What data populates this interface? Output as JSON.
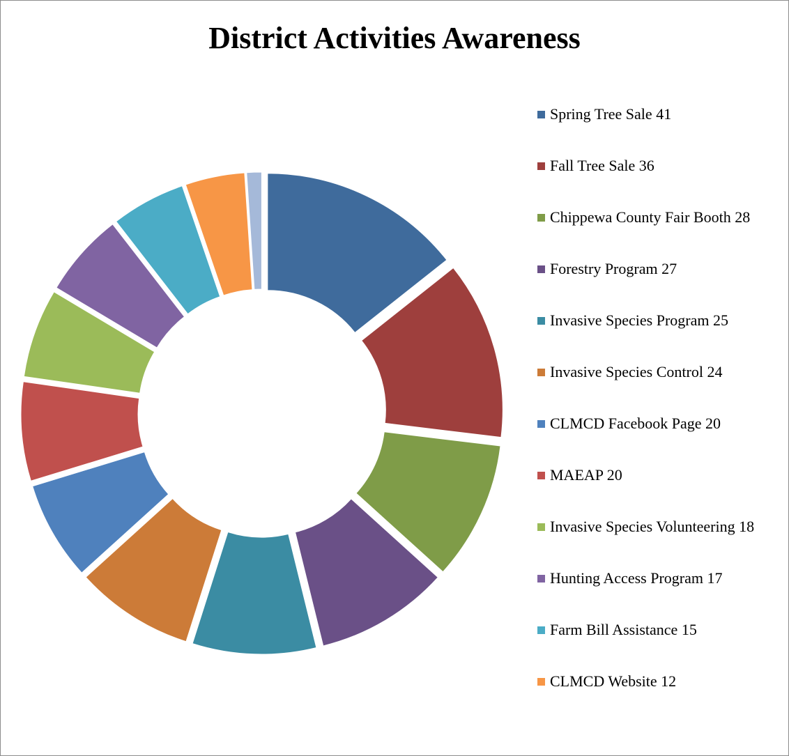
{
  "chart_data": {
    "type": "donut",
    "title": "District Activities Awareness",
    "categories": [
      "Spring Tree Sale",
      "Fall Tree Sale",
      "Chippewa County Fair Booth",
      "Forestry Program",
      "Invasive Species Program",
      "Invasive Species Control",
      "CLMCD Facebook Page",
      "MAEAP",
      "Invasive Species Volunteering",
      "Hunting Access Program",
      "Farm Bill Assistance",
      "CLMCD Website",
      null
    ],
    "values": [
      41,
      36,
      28,
      27,
      25,
      24,
      20,
      20,
      18,
      17,
      15,
      12,
      3
    ],
    "colors": [
      "#3f6b9c",
      "#9e3f3d",
      "#7f9c48",
      "#6a5087",
      "#3b8ca3",
      "#cc7b38",
      "#4f81bd",
      "#c0504d",
      "#9bbb59",
      "#8064a2",
      "#4bacc6",
      "#f79646",
      "#a5b9d9"
    ],
    "legend": "right"
  }
}
